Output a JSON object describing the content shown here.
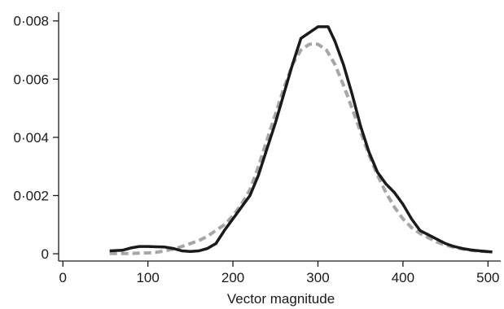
{
  "chart_data": {
    "type": "line",
    "title": "",
    "xlabel": "Vector magnitude",
    "ylabel": "",
    "xlim": [
      -5,
      515
    ],
    "ylim": [
      -0.00025,
      0.0083
    ],
    "x_ticks": [
      0,
      100,
      200,
      300,
      400,
      500
    ],
    "x_tick_labels": [
      "0",
      "100",
      "200",
      "300",
      "400",
      "500"
    ],
    "y_ticks": [
      0,
      0.002,
      0.004,
      0.006,
      0.008
    ],
    "y_tick_labels": [
      "0",
      "0·002",
      "0·004",
      "0·006",
      "0·008"
    ],
    "grid": false,
    "legend": "none",
    "series": [
      {
        "style": "solid",
        "color": "#1a1a1a",
        "x": [
          55,
          70,
          80,
          90,
          100,
          110,
          120,
          130,
          140,
          150,
          160,
          170,
          180,
          190,
          200,
          210,
          220,
          230,
          240,
          250,
          260,
          270,
          280,
          290,
          300,
          305,
          312,
          320,
          330,
          340,
          350,
          360,
          370,
          380,
          390,
          400,
          410,
          420,
          430,
          440,
          450,
          460,
          470,
          480,
          490,
          505
        ],
        "y": [
          0.0001,
          0.00012,
          0.0002,
          0.00025,
          0.00025,
          0.00024,
          0.00023,
          0.00018,
          0.0001,
          8e-05,
          0.0001,
          0.00018,
          0.00035,
          0.0008,
          0.0012,
          0.0016,
          0.002,
          0.0027,
          0.0036,
          0.0045,
          0.0055,
          0.0065,
          0.0074,
          0.0076,
          0.0078,
          0.0078,
          0.0078,
          0.0073,
          0.0065,
          0.0055,
          0.0044,
          0.0035,
          0.0028,
          0.0024,
          0.0021,
          0.0017,
          0.0012,
          0.0008,
          0.00065,
          0.0005,
          0.00035,
          0.00025,
          0.00018,
          0.00013,
          0.0001,
          6e-05
        ]
      },
      {
        "style": "dashed",
        "color": "#a6a6a6",
        "x": [
          55,
          70,
          80,
          90,
          100,
          110,
          120,
          130,
          140,
          150,
          160,
          170,
          180,
          190,
          200,
          210,
          220,
          230,
          240,
          250,
          260,
          270,
          280,
          290,
          300,
          310,
          320,
          330,
          340,
          350,
          360,
          370,
          380,
          390,
          400,
          410,
          420,
          430,
          440,
          450,
          460,
          470,
          480,
          490,
          505
        ],
        "y": [
          1e-05,
          1e-05,
          1e-05,
          2e-05,
          3e-05,
          5e-05,
          0.0001,
          0.00016,
          0.00025,
          0.00035,
          0.00045,
          0.0006,
          0.0008,
          0.001,
          0.0013,
          0.0017,
          0.0022,
          0.003,
          0.0039,
          0.0048,
          0.0057,
          0.0065,
          0.007,
          0.0072,
          0.0072,
          0.007,
          0.0065,
          0.0058,
          0.005,
          0.0042,
          0.0034,
          0.0027,
          0.0021,
          0.0016,
          0.0012,
          0.0009,
          0.0007,
          0.00055,
          0.0004,
          0.0003,
          0.00022,
          0.00016,
          0.00012,
          9e-05,
          6e-05
        ]
      }
    ]
  }
}
